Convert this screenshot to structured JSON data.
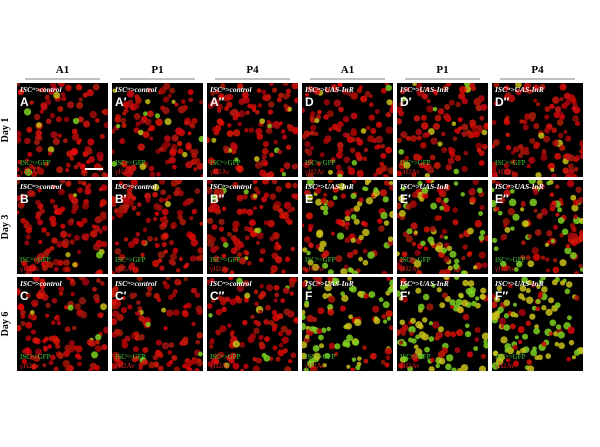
{
  "column_headers": [
    "A1",
    "P1",
    "P4",
    "A1",
    "P1",
    "P4"
  ],
  "row_labels": [
    "Day 1",
    "Day 3",
    "Day 6"
  ],
  "legend": {
    "green": "ISCᵗˢ>GFP",
    "red": "γH2Av"
  },
  "panels": [
    [
      {
        "genotype": "ISCᵗˢ>control",
        "letter": "A"
      },
      {
        "genotype": "ISCᵗˢ>control",
        "letter": "A′"
      },
      {
        "genotype": "ISCᵗˢ>control",
        "letter": "A″"
      },
      {
        "genotype": "ISCᵗˢ>UAS-InR",
        "letter": "D"
      },
      {
        "genotype": "ISCᵗˢ>UAS-InR",
        "letter": "D′"
      },
      {
        "genotype": "ISCᵗˢ>UAS-InR",
        "letter": "D″"
      }
    ],
    [
      {
        "genotype": "ISCᵗˢ>control",
        "letter": "B"
      },
      {
        "genotype": "ISCᵗˢ>control",
        "letter": "B′"
      },
      {
        "genotype": "ISCᵗˢ>control",
        "letter": "B″"
      },
      {
        "genotype": "ISCᵗˢ>UAS-InR",
        "letter": "E"
      },
      {
        "genotype": "ISCᵗˢ>UAS-InR",
        "letter": "E′"
      },
      {
        "genotype": "ISCᵗˢ>UAS-InR",
        "letter": "E″"
      }
    ],
    [
      {
        "genotype": "ISCᵗˢ>control",
        "letter": "C"
      },
      {
        "genotype": "ISCᵗˢ>control",
        "letter": "C′"
      },
      {
        "genotype": "ISCᵗˢ>control",
        "letter": "C″"
      },
      {
        "genotype": "ISCᵗˢ>UAS-InR",
        "letter": "F"
      },
      {
        "genotype": "ISCᵗˢ>UAS-InR",
        "letter": "F′"
      },
      {
        "genotype": "ISCᵗˢ>UAS-InR",
        "letter": "F″"
      }
    ]
  ]
}
